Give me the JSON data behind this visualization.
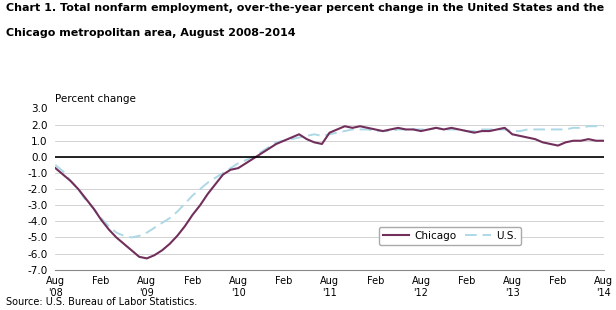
{
  "title_line1": "Chart 1. Total nonfarm employment, over-the-year percent change in the United States and the",
  "title_line2": "Chicago metropolitan area, August 2008–2014",
  "ylabel": "Percent change",
  "source": "Source: U.S. Bureau of Labor Statistics.",
  "ylim": [
    -7.0,
    3.0
  ],
  "yticks": [
    -7.0,
    -6.0,
    -5.0,
    -4.0,
    -3.0,
    -2.0,
    -1.0,
    0.0,
    1.0,
    2.0,
    3.0
  ],
  "chicago_color": "#722F5B",
  "us_color": "#ADD8E6",
  "chicago_data": [
    -0.7,
    -1.1,
    -1.5,
    -2.0,
    -2.6,
    -3.2,
    -3.9,
    -4.5,
    -5.0,
    -5.4,
    -5.8,
    -6.2,
    -6.3,
    -6.1,
    -5.8,
    -5.4,
    -4.9,
    -4.3,
    -3.6,
    -3.0,
    -2.3,
    -1.7,
    -1.1,
    -0.8,
    -0.7,
    -0.4,
    -0.1,
    0.2,
    0.5,
    0.8,
    1.0,
    1.2,
    1.4,
    1.1,
    0.9,
    0.8,
    1.5,
    1.7,
    1.9,
    1.8,
    1.9,
    1.8,
    1.7,
    1.6,
    1.7,
    1.8,
    1.7,
    1.7,
    1.6,
    1.7,
    1.8,
    1.7,
    1.8,
    1.7,
    1.6,
    1.5,
    1.6,
    1.6,
    1.7,
    1.8,
    1.4,
    1.3,
    1.2,
    1.1,
    0.9,
    0.8,
    0.7,
    0.9,
    1.0,
    1.0,
    1.1,
    1.0,
    1.0
  ],
  "us_data": [
    -0.5,
    -0.9,
    -1.5,
    -2.0,
    -2.7,
    -3.2,
    -3.8,
    -4.3,
    -4.7,
    -4.9,
    -5.0,
    -4.9,
    -4.7,
    -4.4,
    -4.1,
    -3.8,
    -3.4,
    -2.9,
    -2.4,
    -2.0,
    -1.6,
    -1.3,
    -1.0,
    -0.7,
    -0.4,
    -0.2,
    0.0,
    0.3,
    0.6,
    0.9,
    1.0,
    1.1,
    1.2,
    1.3,
    1.4,
    1.3,
    1.4,
    1.5,
    1.6,
    1.7,
    1.7,
    1.7,
    1.6,
    1.6,
    1.6,
    1.7,
    1.7,
    1.7,
    1.7,
    1.7,
    1.8,
    1.7,
    1.7,
    1.7,
    1.6,
    1.6,
    1.7,
    1.7,
    1.7,
    1.7,
    1.6,
    1.6,
    1.7,
    1.7,
    1.7,
    1.7,
    1.7,
    1.7,
    1.8,
    1.8,
    1.9,
    1.9,
    1.9
  ],
  "xtick_positions": [
    0,
    6,
    12,
    18,
    24,
    30,
    36,
    42,
    48,
    54,
    60,
    66,
    72
  ],
  "xtick_labels": [
    "Aug\n'08",
    "Feb",
    "Aug\n'09",
    "Feb",
    "Aug\n'10",
    "Feb",
    "Aug\n'11",
    "Feb",
    "Aug\n'12",
    "Feb",
    "Aug\n'13",
    "Feb",
    "Aug\n'14"
  ]
}
